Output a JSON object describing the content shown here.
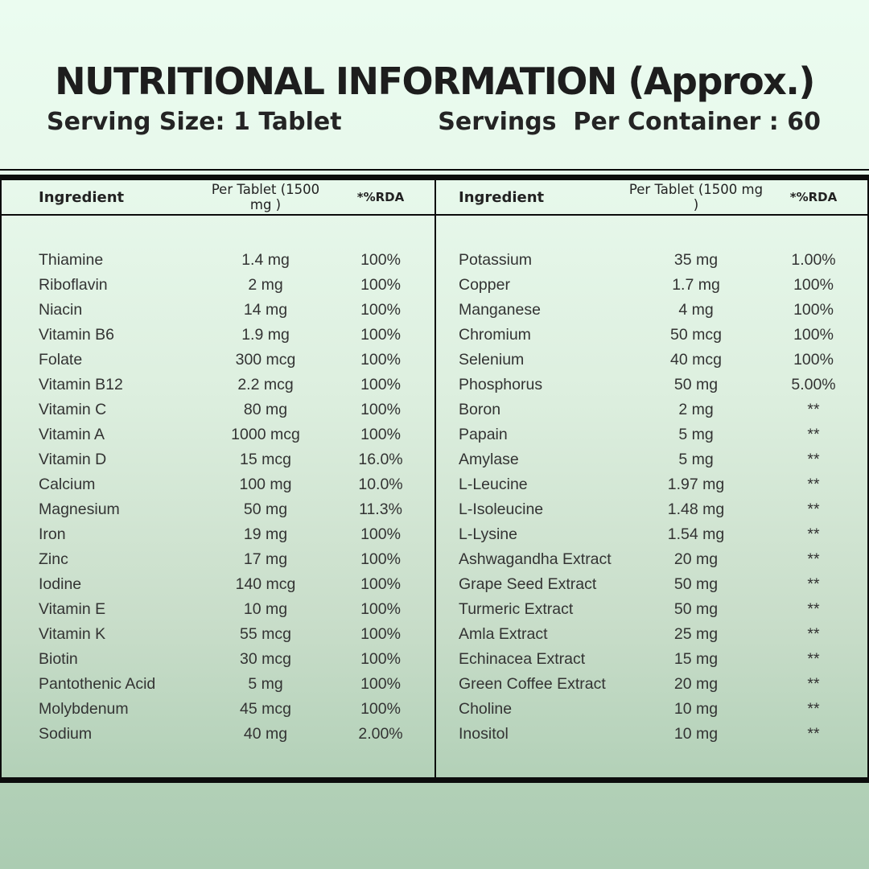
{
  "header": {
    "title": "NUTRITIONAL INFORMATION (Approx.)",
    "serving_size": "Serving Size: 1 Tablet",
    "servings_per_container": "Servings  Per Container : 60"
  },
  "table": {
    "columns": {
      "ingredient": "Ingredient",
      "per_tablet": "Per Tablet (1500 mg )",
      "rda": "*%RDA"
    },
    "left_rows": [
      {
        "name": "Thiamine",
        "amount": "1.4 mg",
        "rda": "100%"
      },
      {
        "name": "Riboflavin",
        "amount": "2 mg",
        "rda": "100%"
      },
      {
        "name": "Niacin",
        "amount": "14 mg",
        "rda": "100%"
      },
      {
        "name": "Vitamin B6",
        "amount": "1.9 mg",
        "rda": "100%"
      },
      {
        "name": "Folate",
        "amount": "300 mcg",
        "rda": "100%"
      },
      {
        "name": "Vitamin B12",
        "amount": "2.2 mcg",
        "rda": "100%"
      },
      {
        "name": "Vitamin C",
        "amount": "80 mg",
        "rda": "100%"
      },
      {
        "name": "Vitamin A",
        "amount": "1000 mcg",
        "rda": "100%"
      },
      {
        "name": "Vitamin D",
        "amount": "15 mcg",
        "rda": "16.0%"
      },
      {
        "name": "Calcium",
        "amount": "100 mg",
        "rda": "10.0%"
      },
      {
        "name": "Magnesium",
        "amount": "50 mg",
        "rda": "11.3%"
      },
      {
        "name": "Iron",
        "amount": "19 mg",
        "rda": "100%"
      },
      {
        "name": "Zinc",
        "amount": "17 mg",
        "rda": "100%"
      },
      {
        "name": "Iodine",
        "amount": "140 mcg",
        "rda": "100%"
      },
      {
        "name": "Vitamin E",
        "amount": "10 mg",
        "rda": "100%"
      },
      {
        "name": "Vitamin K",
        "amount": "55 mcg",
        "rda": "100%"
      },
      {
        "name": "Biotin",
        "amount": "30 mcg",
        "rda": "100%"
      },
      {
        "name": "Pantothenic Acid",
        "amount": "5 mg",
        "rda": "100%"
      },
      {
        "name": "Molybdenum",
        "amount": "45 mcg",
        "rda": "100%"
      },
      {
        "name": "Sodium",
        "amount": "40 mg",
        "rda": "2.00%"
      }
    ],
    "right_rows": [
      {
        "name": "Potassium",
        "amount": "35 mg",
        "rda": "1.00%"
      },
      {
        "name": "Copper",
        "amount": "1.7 mg",
        "rda": "100%"
      },
      {
        "name": "Manganese",
        "amount": "4 mg",
        "rda": "100%"
      },
      {
        "name": "Chromium",
        "amount": "50 mcg",
        "rda": "100%"
      },
      {
        "name": "Selenium",
        "amount": "40 mcg",
        "rda": "100%"
      },
      {
        "name": "Phosphorus",
        "amount": "50 mg",
        "rda": "5.00%"
      },
      {
        "name": "Boron",
        "amount": "2 mg",
        "rda": "**"
      },
      {
        "name": "Papain",
        "amount": "5 mg",
        "rda": "**"
      },
      {
        "name": "Amylase",
        "amount": "5 mg",
        "rda": "**"
      },
      {
        "name": "L-Leucine",
        "amount": "1.97 mg",
        "rda": "**"
      },
      {
        "name": "L-Isoleucine",
        "amount": "1.48 mg",
        "rda": "**"
      },
      {
        "name": "L-Lysine",
        "amount": "1.54 mg",
        "rda": "**"
      },
      {
        "name": "Ashwagandha Extract",
        "amount": "20 mg",
        "rda": "**"
      },
      {
        "name": "Grape Seed Extract",
        "amount": "50 mg",
        "rda": "**"
      },
      {
        "name": "Turmeric Extract",
        "amount": "50 mg",
        "rda": "**"
      },
      {
        "name": "Amla Extract",
        "amount": "25 mg",
        "rda": "**"
      },
      {
        "name": "Echinacea Extract",
        "amount": "15 mg",
        "rda": "**"
      },
      {
        "name": "Green Coffee Extract",
        "amount": "20 mg",
        "rda": "**"
      },
      {
        "name": "Choline",
        "amount": "10 mg",
        "rda": "**"
      },
      {
        "name": "Inositol",
        "amount": "10 mg",
        "rda": "**"
      }
    ]
  },
  "colors": {
    "background_top": "#ebfcf0",
    "background_bottom": "#abccb2",
    "rule": "#0c0c0c",
    "title_text": "#1d1d1d",
    "body_text": "#333333"
  }
}
